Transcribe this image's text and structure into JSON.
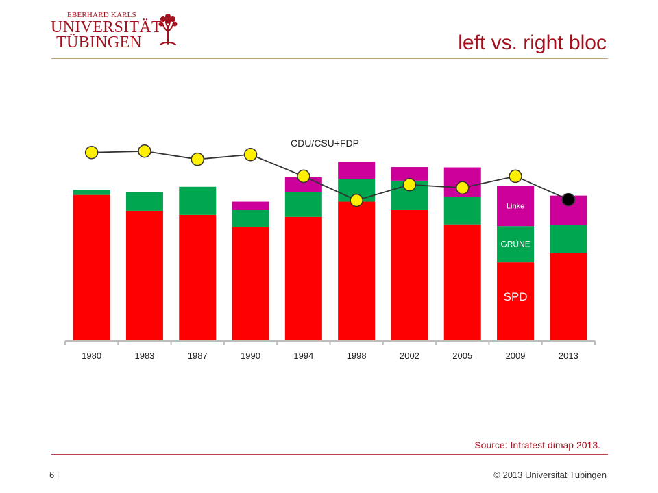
{
  "header": {
    "logo_line1": "EBERHARD KARLS",
    "logo_line2": "UNIVERSITÄT",
    "logo_line3": "TÜBINGEN",
    "title": "left vs. right bloc"
  },
  "footer": {
    "source": "Source: Infratest dimap 2013.",
    "page_number": "6 |",
    "copyright": "© 2013 Universität Tübingen"
  },
  "colors": {
    "spd": "#ff0000",
    "gruene": "#00a650",
    "linke": "#cc0099",
    "marker": "#ffef00",
    "brand": "#a3111e"
  },
  "chart_data": {
    "type": "bar",
    "stacked": true,
    "categories": [
      "1980",
      "1983",
      "1987",
      "1990",
      "1994",
      "1998",
      "2002",
      "2005",
      "2009",
      "2013"
    ],
    "series": [
      {
        "name": "SPD",
        "color": "#ff0000",
        "values": [
          42.9,
          38.2,
          37.0,
          33.5,
          36.4,
          40.9,
          38.5,
          34.2,
          23.0,
          25.7
        ]
      },
      {
        "name": "GRÜNE",
        "color": "#00a650",
        "values": [
          1.5,
          5.6,
          8.3,
          5.0,
          7.3,
          6.7,
          8.6,
          8.1,
          10.7,
          8.4
        ]
      },
      {
        "name": "Linke",
        "color": "#cc0099",
        "values": [
          0,
          0,
          0,
          2.4,
          4.4,
          5.1,
          4.0,
          8.7,
          11.9,
          8.6
        ]
      }
    ],
    "line": {
      "name": "CDU/CSU+FDP",
      "values": [
        55.4,
        55.8,
        53.4,
        54.8,
        48.4,
        41.3,
        45.9,
        45.0,
        48.4,
        41.5
      ],
      "marker_colors": [
        "#ffef00",
        "#ffef00",
        "#ffef00",
        "#ffef00",
        "#ffef00",
        "#ffef00",
        "#ffef00",
        "#ffef00",
        "#ffef00",
        "#000000"
      ]
    },
    "ylim": [
      0,
      60
    ],
    "y_axis_shown": false,
    "grid": false,
    "in_chart_labels": {
      "linke": "Linke",
      "gruene": "GRÜNE",
      "spd": "SPD"
    }
  }
}
